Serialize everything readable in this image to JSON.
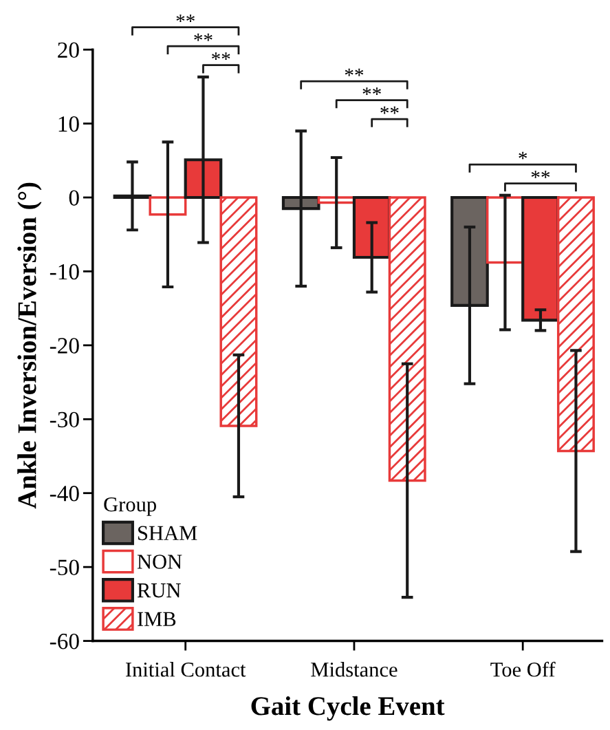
{
  "chart_data": {
    "type": "bar",
    "xlabel": "Gait Cycle Event",
    "ylabel": "Ankle Inversion/Eversion (°)",
    "categories": [
      "Initial Contact",
      "Midstance",
      "Toe Off"
    ],
    "series": [
      {
        "name": "SHAM",
        "color": "#6b6460",
        "values": [
          0.2,
          -1.5,
          -14.6
        ],
        "errors": [
          4.6,
          10.5,
          10.6
        ]
      },
      {
        "name": "NON",
        "color": "#ffffff",
        "values": [
          -2.3,
          -0.7,
          -8.8
        ],
        "errors": [
          9.8,
          6.1,
          9.1
        ]
      },
      {
        "name": "RUN",
        "color": "#e83a3a",
        "values": [
          5.1,
          -8.1,
          -16.6
        ],
        "errors": [
          11.2,
          4.7,
          1.4
        ]
      },
      {
        "name": "IMB",
        "color": "#e83a3a",
        "values": [
          -30.9,
          -38.3,
          -34.3
        ],
        "errors": [
          9.6,
          15.8,
          13.6
        ]
      }
    ],
    "ylim": [
      -60,
      20
    ],
    "yticks": [
      -60,
      -50,
      -40,
      -30,
      -20,
      -10,
      0,
      10,
      20
    ],
    "legend_title": "Group",
    "legend": "bottom left",
    "grid": false,
    "annotations": [
      "**",
      "**",
      "**",
      "**",
      "**",
      "**",
      "*",
      "**"
    ]
  }
}
